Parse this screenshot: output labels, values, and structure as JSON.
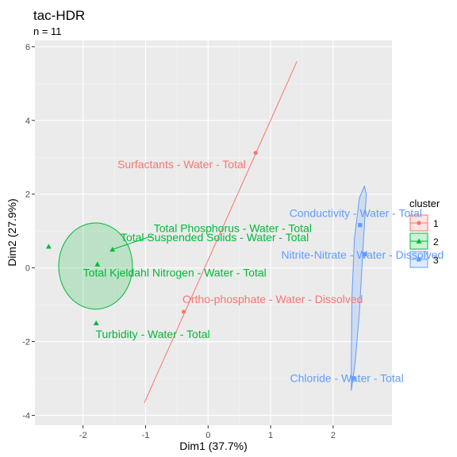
{
  "chart_data": {
    "type": "scatter",
    "title": "tac-HDR",
    "subtitle": "n = 11",
    "xlabel": "Dim1 (37.7%)",
    "ylabel": "Dim2 (27.9%)",
    "xlim": [
      -2.77,
      2.94
    ],
    "ylim": [
      -4.27,
      6.17
    ],
    "x_ticks": [
      -2,
      -1,
      0,
      1,
      2
    ],
    "y_ticks": [
      -4,
      -2,
      0,
      2,
      4,
      6
    ],
    "grid": true,
    "legend": {
      "title": "cluster",
      "position": "right",
      "entries": [
        "1",
        "2",
        "3"
      ]
    },
    "colors": {
      "1": "#F8766D",
      "2": "#00BA38",
      "3": "#619CFF"
    },
    "series": [
      {
        "name": "1",
        "shape": "circle",
        "points": [
          {
            "label": "Surfactants - Water - Total",
            "x": 0.76,
            "y": 3.12
          },
          {
            "label": "Ortho-phosphate - Water - Dissolved",
            "x": -0.39,
            "y": -1.19
          }
        ],
        "ellipse_segment": [
          [
            -1.02,
            -3.66
          ],
          [
            1.42,
            5.6
          ]
        ]
      },
      {
        "name": "2",
        "shape": "triangle",
        "points": [
          {
            "label": "Total Suspended Solids - Water - Total",
            "x": -2.55,
            "y": 0.58
          },
          {
            "label": "Total Phosphorus - Water - Total",
            "x": -1.53,
            "y": 0.5
          },
          {
            "label": "Total Kjeldahl Nitrogen - Water - Total",
            "x": -1.77,
            "y": 0.1
          },
          {
            "label": "Turbidity - Water - Total",
            "x": -1.79,
            "y": -1.5
          }
        ],
        "ellipse_center": [
          -1.8,
          0.05
        ],
        "ellipse_rx": 0.59,
        "ellipse_ry": 1.17
      },
      {
        "name": "3",
        "shape": "square",
        "points": [
          {
            "label": "Conductivity - Water - Total",
            "x": 2.43,
            "y": 1.16
          },
          {
            "label": "Nitrite-Nitrate - Water - Dissolved",
            "x": 2.51,
            "y": 0.37
          },
          {
            "label": "Chloride - Water - Total",
            "x": 2.32,
            "y": -3.0
          }
        ],
        "ellipse_polygon": [
          [
            2.5,
            2.22
          ],
          [
            2.42,
            1.9
          ],
          [
            2.34,
            0.8
          ],
          [
            2.3,
            -0.8
          ],
          [
            2.29,
            -2.4
          ],
          [
            2.29,
            -3.32
          ],
          [
            2.35,
            -2.6
          ],
          [
            2.42,
            -1.2
          ],
          [
            2.48,
            0.6
          ],
          [
            2.53,
            2.0
          ]
        ]
      }
    ],
    "label_offsets": {
      "Surfactants - Water - Total": [
        -1.45,
        2.7
      ],
      "Ortho-phosphate - Water - Dissolved": [
        -0.41,
        -0.95
      ],
      "Total Suspended Solids - Water - Total": [
        -1.4,
        0.72
      ],
      "Total Phosphorus - Water - Total": [
        -0.87,
        0.97
      ],
      "Total Kjeldahl Nitrogen - Water - Total": [
        -2.0,
        -0.23
      ],
      "Turbidity - Water - Total": [
        -1.8,
        -1.9
      ],
      "Conductivity - Water - Total": [
        1.3,
        1.38
      ],
      "Nitrite-Nitrate - Water - Dissolved": [
        1.17,
        0.25
      ],
      "Chloride - Water - Total": [
        1.31,
        -3.1
      ]
    }
  }
}
